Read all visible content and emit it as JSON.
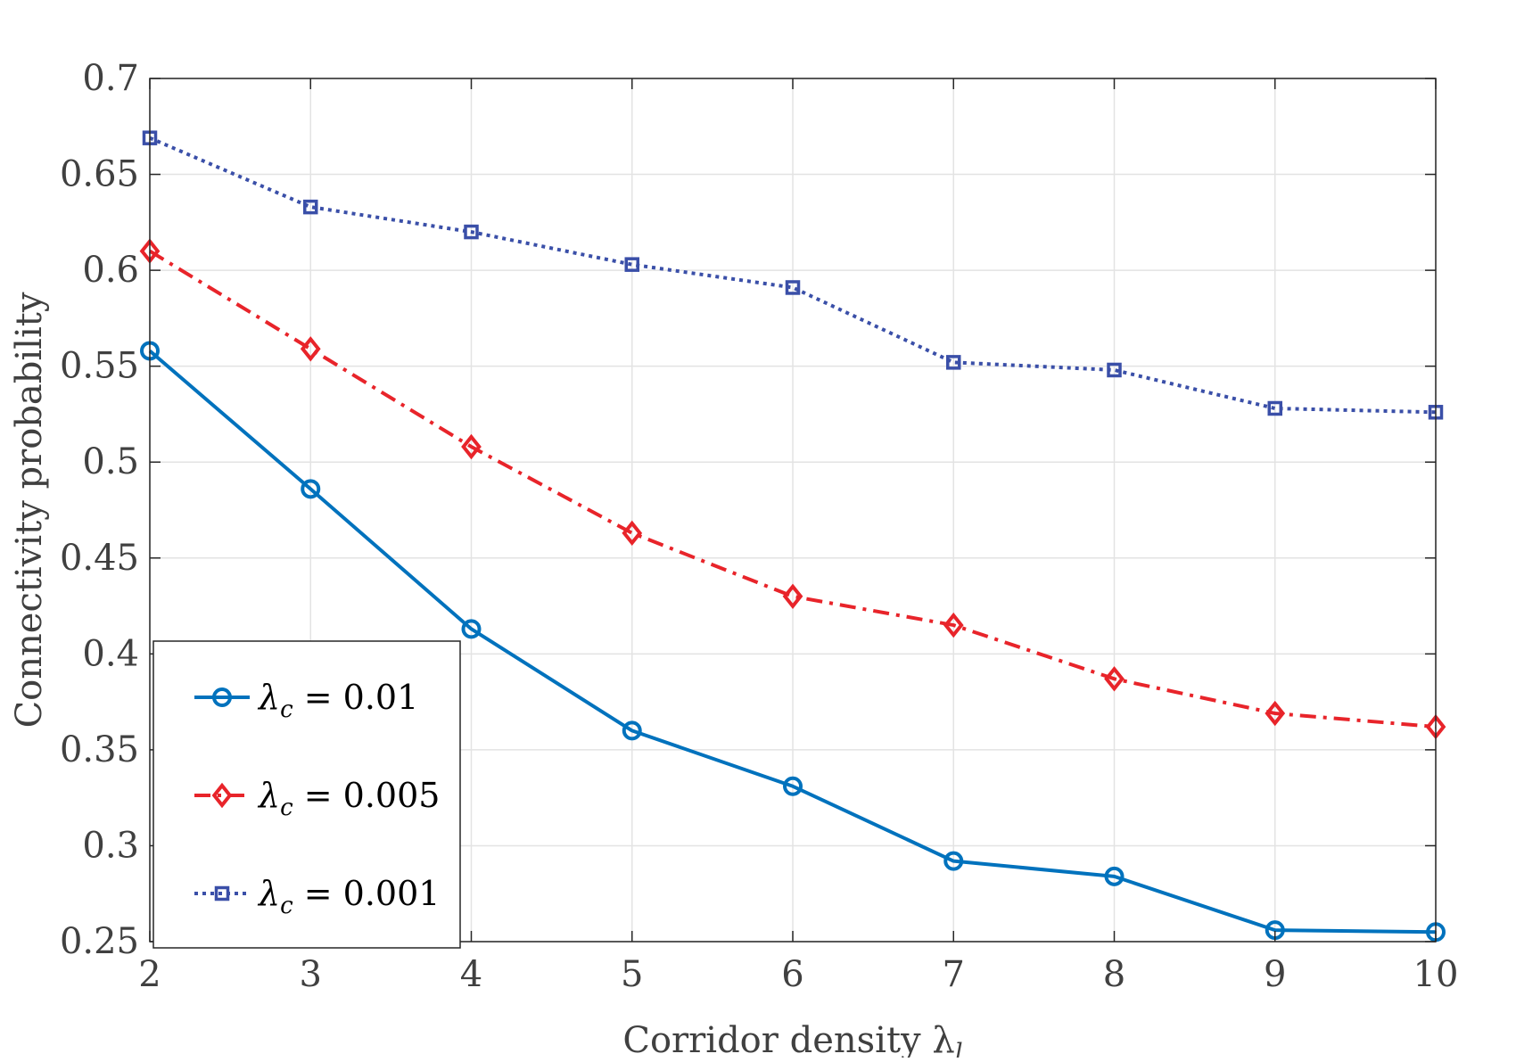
{
  "chart_data": {
    "type": "line",
    "xlabel": "Corridor density λ",
    "xlabel_subscript": "l",
    "ylabel": "Connectivity probability",
    "x": [
      2,
      3,
      4,
      5,
      6,
      7,
      8,
      9,
      10
    ],
    "xlim": [
      2,
      10
    ],
    "ylim": [
      0.25,
      0.7
    ],
    "xticks": [
      "2",
      "3",
      "4",
      "5",
      "6",
      "7",
      "8",
      "9",
      "10"
    ],
    "yticks": [
      "0.25",
      "0.3",
      "0.35",
      "0.4",
      "0.45",
      "0.5",
      "0.55",
      "0.6",
      "0.65",
      "0.7"
    ],
    "grid": true,
    "legend_position": "bottom-left",
    "series": [
      {
        "name": "λc = 0.01",
        "legend_symbol": "λ",
        "legend_subscript": "c",
        "legend_value": " = 0.01",
        "color": "#0072BD",
        "line_style": "solid",
        "marker": "circle",
        "values": [
          0.558,
          0.486,
          0.413,
          0.36,
          0.331,
          0.292,
          0.284,
          0.256,
          0.255
        ]
      },
      {
        "name": "λc = 0.005",
        "legend_symbol": "λ",
        "legend_subscript": "c",
        "legend_value": " = 0.005",
        "color": "#E8242A",
        "line_style": "dashdot",
        "marker": "diamond",
        "values": [
          0.61,
          0.559,
          0.508,
          0.463,
          0.43,
          0.415,
          0.387,
          0.369,
          0.362
        ]
      },
      {
        "name": "λc = 0.001",
        "legend_symbol": "λ",
        "legend_subscript": "c",
        "legend_value": " = 0.001",
        "color": "#3A4FA8",
        "line_style": "dotted",
        "marker": "square",
        "values": [
          0.669,
          0.633,
          0.62,
          0.603,
          0.591,
          0.552,
          0.548,
          0.528,
          0.526
        ]
      }
    ]
  }
}
